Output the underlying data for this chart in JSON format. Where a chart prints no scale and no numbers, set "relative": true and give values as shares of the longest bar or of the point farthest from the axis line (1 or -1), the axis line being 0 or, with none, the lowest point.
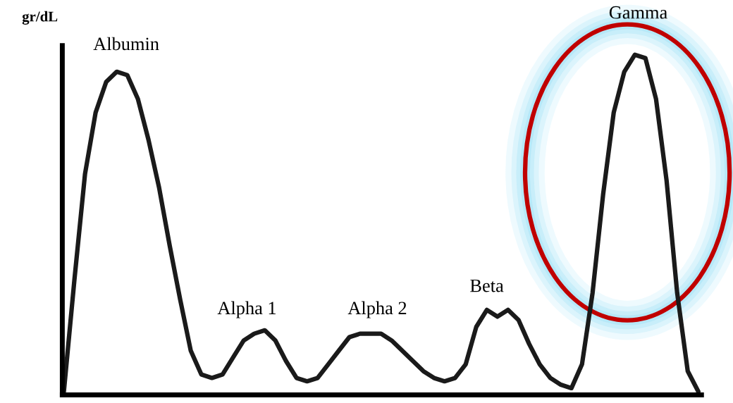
{
  "chart_data": {
    "type": "line",
    "relative": true,
    "ylabel": "gr/dL",
    "annotations": [
      "Albumin",
      "Alpha 1",
      "Alpha 2",
      "Beta",
      "Gamma"
    ],
    "categories": [
      null,
      null,
      null,
      null,
      null,
      null,
      null,
      null,
      null,
      null,
      null,
      null,
      null,
      null,
      null,
      null,
      null,
      null,
      null,
      null,
      null,
      null,
      null,
      null,
      null,
      null,
      null,
      null,
      null,
      null,
      null,
      null,
      null,
      null,
      null,
      null,
      null,
      null,
      null,
      null,
      null,
      null,
      null,
      null,
      null,
      null,
      null,
      null,
      null,
      null,
      null,
      null,
      null,
      null,
      null,
      null,
      null,
      null,
      null,
      null,
      null
    ],
    "series": [
      {
        "color": "#1a1a1a",
        "values": [
          0.01,
          0.34,
          0.65,
          0.83,
          0.92,
          0.95,
          0.94,
          0.87,
          0.75,
          0.61,
          0.44,
          0.28,
          0.13,
          0.06,
          0.05,
          0.06,
          0.11,
          0.16,
          0.18,
          0.19,
          0.16,
          0.1,
          0.05,
          0.04,
          0.05,
          0.09,
          0.13,
          0.17,
          0.18,
          0.18,
          0.18,
          0.16,
          0.13,
          0.1,
          0.07,
          0.05,
          0.04,
          0.05,
          0.09,
          0.2,
          0.25,
          0.23,
          0.25,
          0.22,
          0.15,
          0.09,
          0.05,
          0.03,
          0.02,
          0.09,
          0.3,
          0.59,
          0.83,
          0.95,
          1.0,
          0.99,
          0.87,
          0.63,
          0.3,
          0.07,
          0.01
        ]
      }
    ],
    "grid": false,
    "legend": false,
    "marker": "none",
    "line_style": "solid"
  }
}
